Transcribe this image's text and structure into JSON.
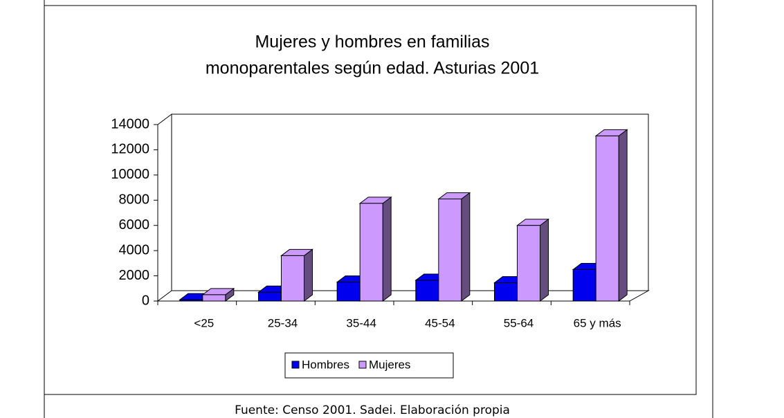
{
  "chart_data": {
    "type": "bar3d",
    "title": [
      "Mujeres y hombres en familias",
      "monoparentales según edad. Asturias 2001"
    ],
    "categories": [
      "<25",
      "25-34",
      "35-44",
      "45-54",
      "55-64",
      "65 y más"
    ],
    "series": [
      {
        "name": "Hombres",
        "color": "#0000ee",
        "values": [
          100,
          700,
          1500,
          1650,
          1450,
          2500
        ]
      },
      {
        "name": "Mujeres",
        "color": "#cc99ff",
        "values": [
          500,
          3600,
          7750,
          8100,
          6000,
          13100
        ]
      }
    ],
    "ylim": [
      0,
      14000
    ],
    "yticks": [
      0,
      2000,
      4000,
      6000,
      8000,
      10000,
      12000,
      14000
    ],
    "grid": false,
    "legend": "bottom",
    "source": "Fuente: Censo 2001. Sadei. Elaboración propia"
  }
}
